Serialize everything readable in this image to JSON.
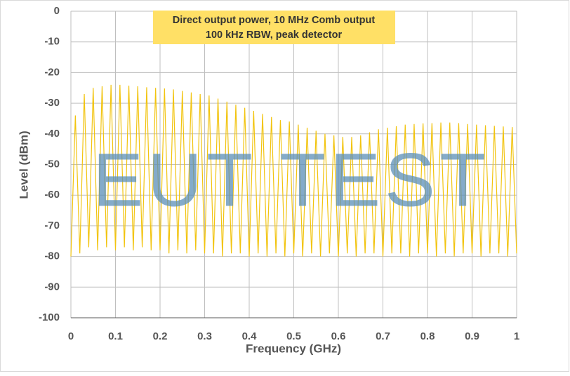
{
  "chart_data": {
    "type": "line",
    "title": "Direct output power, 10 MHz Comb output",
    "subtitle": "100 kHz RBW, peak detector",
    "watermark": "EUT TEST",
    "x_label": "Frequency (GHz)",
    "y_label": "Level (dBm)",
    "color": "#f2c40f",
    "grid": true,
    "xlim": [
      0,
      1
    ],
    "ylim": [
      -100,
      0
    ],
    "xticks": [
      0,
      0.1,
      0.2,
      0.3,
      0.4,
      0.5,
      0.6,
      0.7,
      0.8,
      0.9,
      1
    ],
    "yticks": [
      0,
      -10,
      -20,
      -30,
      -40,
      -50,
      -60,
      -70,
      -80,
      -90,
      -100
    ],
    "x": [
      0,
      0.01,
      0.02,
      0.03,
      0.04,
      0.05,
      0.06,
      0.07,
      0.08,
      0.09,
      0.1,
      0.11,
      0.12,
      0.13,
      0.14,
      0.15,
      0.16,
      0.17,
      0.18,
      0.19,
      0.2,
      0.21,
      0.22,
      0.23,
      0.24,
      0.25,
      0.26,
      0.27,
      0.28,
      0.29,
      0.3,
      0.31,
      0.32,
      0.33,
      0.34,
      0.35,
      0.36,
      0.37,
      0.38,
      0.39,
      0.4,
      0.41,
      0.42,
      0.43,
      0.44,
      0.45,
      0.46,
      0.47,
      0.48,
      0.49,
      0.5,
      0.51,
      0.52,
      0.53,
      0.54,
      0.55,
      0.56,
      0.57,
      0.58,
      0.59,
      0.6,
      0.61,
      0.62,
      0.63,
      0.64,
      0.65,
      0.66,
      0.67,
      0.68,
      0.69,
      0.7,
      0.71,
      0.72,
      0.73,
      0.74,
      0.75,
      0.76,
      0.77,
      0.78,
      0.79,
      0.8,
      0.81,
      0.82,
      0.83,
      0.84,
      0.85,
      0.86,
      0.87,
      0.88,
      0.89,
      0.9,
      0.91,
      0.92,
      0.93,
      0.94,
      0.95,
      0.96,
      0.97,
      0.98,
      0.99,
      1
    ],
    "values": [
      -80,
      -34,
      -79,
      -27,
      -77,
      -25,
      -78,
      -24.5,
      -77,
      -24,
      -78,
      -24,
      -77,
      -24.3,
      -78,
      -24.5,
      -77,
      -24.8,
      -78,
      -25,
      -78,
      -25.2,
      -79,
      -25.5,
      -78,
      -26,
      -79,
      -26.5,
      -78,
      -27,
      -79,
      -27.5,
      -79,
      -28.5,
      -80,
      -29.5,
      -79,
      -30.5,
      -79,
      -31.5,
      -80,
      -32.5,
      -79,
      -33.5,
      -80,
      -34.5,
      -79,
      -35.5,
      -80,
      -36,
      -79,
      -37,
      -80,
      -38,
      -79,
      -39,
      -80,
      -40,
      -79,
      -40.5,
      -80,
      -41,
      -79,
      -41,
      -80,
      -40.5,
      -79,
      -39.5,
      -79,
      -38.5,
      -80,
      -38,
      -79,
      -37.5,
      -79,
      -37,
      -80,
      -36.8,
      -79,
      -36.6,
      -79,
      -36.5,
      -80,
      -36.3,
      -79,
      -36.3,
      -80,
      -36.5,
      -79,
      -36.8,
      -79,
      -37,
      -80,
      -37.2,
      -79,
      -37.4,
      -79,
      -37.6,
      -80,
      -37.8,
      -79
    ]
  }
}
